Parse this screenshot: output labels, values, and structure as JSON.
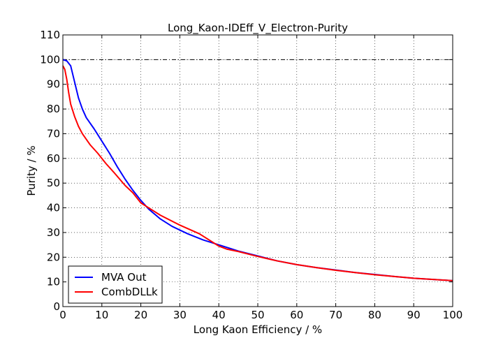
{
  "chart_data": {
    "type": "line",
    "title": "Long_Kaon-IDEff_V_Electron-Purity",
    "xlabel": "Long Kaon Efficiency / %",
    "ylabel": "Purity / %",
    "xlim": [
      0,
      100
    ],
    "ylim": [
      0,
      110
    ],
    "xticks": [
      0,
      10,
      20,
      30,
      40,
      50,
      60,
      70,
      80,
      90,
      100
    ],
    "yticks": [
      0,
      10,
      20,
      30,
      40,
      50,
      60,
      70,
      80,
      90,
      100,
      110
    ],
    "grid": true,
    "legend_position": "lower-left",
    "reference_line": {
      "y": 100,
      "style": "dash-dot",
      "color": "#000000"
    },
    "series": [
      {
        "name": "MVA Out",
        "color": "#0000ff",
        "points": [
          [
            0,
            100
          ],
          [
            1,
            99.5
          ],
          [
            2,
            97.5
          ],
          [
            3,
            91
          ],
          [
            4,
            84.5
          ],
          [
            5,
            80
          ],
          [
            6,
            76.5
          ],
          [
            8,
            72
          ],
          [
            10,
            67
          ],
          [
            12,
            62
          ],
          [
            14,
            56.5
          ],
          [
            16,
            51.5
          ],
          [
            18,
            47
          ],
          [
            20,
            43
          ],
          [
            22,
            39.5
          ],
          [
            25,
            35.5
          ],
          [
            28,
            32.5
          ],
          [
            32,
            29.5
          ],
          [
            36,
            27
          ],
          [
            40,
            25
          ],
          [
            45,
            22.5
          ],
          [
            50,
            20.5
          ],
          [
            55,
            18.5
          ],
          [
            60,
            17
          ],
          [
            65,
            15.8
          ],
          [
            70,
            14.8
          ],
          [
            75,
            13.8
          ],
          [
            80,
            13
          ],
          [
            85,
            12.2
          ],
          [
            90,
            11.5
          ],
          [
            95,
            11
          ],
          [
            100,
            10.5
          ]
        ]
      },
      {
        "name": "CombDLLk",
        "color": "#ff0000",
        "points": [
          [
            0,
            97.5
          ],
          [
            0.5,
            96
          ],
          [
            1,
            92
          ],
          [
            1.5,
            86.5
          ],
          [
            2,
            82
          ],
          [
            3,
            77
          ],
          [
            4,
            73
          ],
          [
            5,
            70
          ],
          [
            7,
            65.5
          ],
          [
            9,
            62
          ],
          [
            11,
            58
          ],
          [
            13,
            54.5
          ],
          [
            16,
            49
          ],
          [
            18,
            46
          ],
          [
            20,
            42
          ],
          [
            22,
            40
          ],
          [
            25,
            37
          ],
          [
            30,
            33
          ],
          [
            35,
            29.5
          ],
          [
            40,
            24.5
          ],
          [
            42,
            23.3
          ],
          [
            45,
            22.3
          ],
          [
            50,
            20.3
          ],
          [
            55,
            18.5
          ],
          [
            60,
            17
          ],
          [
            65,
            15.8
          ],
          [
            70,
            14.7
          ],
          [
            75,
            13.8
          ],
          [
            80,
            12.9
          ],
          [
            85,
            12.2
          ],
          [
            90,
            11.5
          ],
          [
            95,
            11
          ],
          [
            100,
            10.5
          ]
        ]
      }
    ]
  }
}
